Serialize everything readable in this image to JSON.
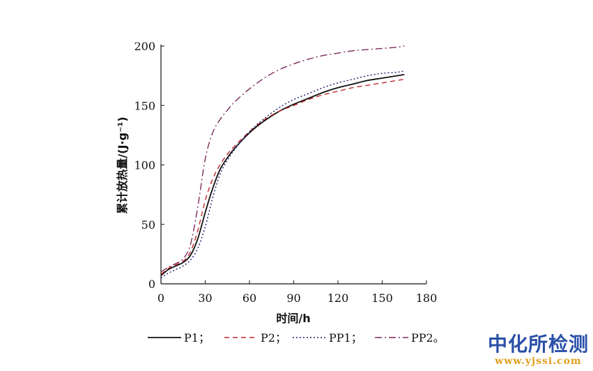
{
  "chart_data": {
    "type": "line",
    "title": "",
    "xlabel": "时间/h",
    "ylabel": "累计放热量/(J·g⁻¹)",
    "xlim": [
      0,
      180
    ],
    "ylim": [
      0,
      200
    ],
    "x_ticks": [
      "0",
      "30",
      "60",
      "90",
      "120",
      "150",
      "180"
    ],
    "y_ticks": [
      "0",
      "50",
      "100",
      "150",
      "200"
    ],
    "grid": false,
    "legend_position": "bottom",
    "series": [
      {
        "name": "P1",
        "legend_label": "P1；",
        "color": "#111111",
        "style": "solid",
        "x": [
          0,
          5,
          10,
          15,
          20,
          25,
          30,
          35,
          40,
          45,
          50,
          60,
          70,
          80,
          90,
          100,
          110,
          120,
          130,
          140,
          150,
          160,
          165
        ],
        "y": [
          7,
          12,
          15,
          18,
          24,
          38,
          60,
          80,
          96,
          106,
          114,
          127,
          137,
          145,
          151,
          156,
          161,
          165,
          168,
          171,
          173,
          175,
          176
        ]
      },
      {
        "name": "P2",
        "legend_label": "P2；",
        "color": "#c0282d",
        "style": "dashed",
        "x": [
          0,
          5,
          10,
          15,
          20,
          25,
          30,
          35,
          40,
          45,
          50,
          60,
          70,
          80,
          90,
          100,
          110,
          120,
          130,
          140,
          150,
          160,
          165
        ],
        "y": [
          8,
          13,
          16,
          19,
          27,
          45,
          70,
          88,
          100,
          109,
          116,
          128,
          138,
          145,
          150,
          155,
          159,
          162,
          165,
          167,
          169,
          171,
          172
        ]
      },
      {
        "name": "PP1",
        "legend_label": "PP1；",
        "color": "#1a1a6e",
        "style": "dotted",
        "x": [
          0,
          5,
          10,
          15,
          20,
          25,
          30,
          35,
          40,
          45,
          50,
          60,
          70,
          80,
          90,
          100,
          110,
          120,
          130,
          140,
          150,
          160,
          165
        ],
        "y": [
          5,
          9,
          12,
          15,
          20,
          30,
          48,
          72,
          92,
          104,
          113,
          128,
          139,
          148,
          155,
          160,
          165,
          169,
          172,
          175,
          177,
          178,
          179
        ]
      },
      {
        "name": "PP2",
        "legend_label": "PP2。",
        "color": "#7a2a5a",
        "style": "dashdot",
        "x": [
          0,
          5,
          10,
          15,
          20,
          25,
          30,
          35,
          40,
          45,
          50,
          60,
          70,
          80,
          90,
          100,
          110,
          120,
          130,
          140,
          150,
          160,
          165
        ],
        "y": [
          10,
          14,
          17,
          21,
          33,
          65,
          105,
          127,
          138,
          146,
          153,
          164,
          173,
          180,
          185,
          189,
          192,
          194,
          196,
          197,
          198,
          199,
          200
        ]
      }
    ]
  },
  "watermark": {
    "name": "中化所检测",
    "url": "www.yjssi.com"
  }
}
